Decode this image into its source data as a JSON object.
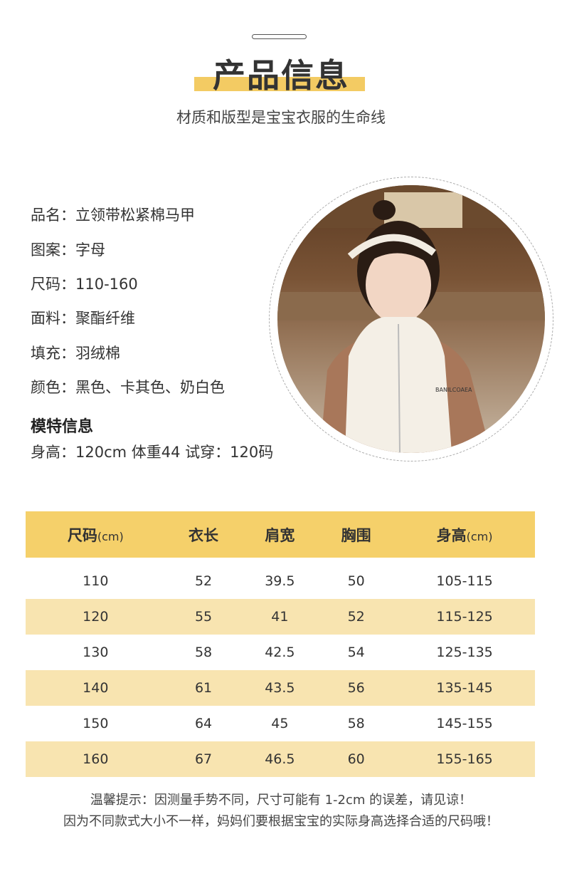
{
  "header": {
    "title": "产品信息",
    "subtitle": "材质和版型是宝宝衣服的生命线"
  },
  "product_info": [
    "品名：立领带松紧棉马甲",
    "图案：字母",
    "尺码：110-160",
    "面料：聚酯纤维",
    "填充：羽绒棉",
    "颜色：黑色、卡其色、奶白色"
  ],
  "model": {
    "title": "模特信息",
    "details": "身高：120cm 体重44  试穿：120码"
  },
  "photo": {
    "vest_text": "BANILCOAEA"
  },
  "size_table": {
    "headers": [
      {
        "label": "尺码",
        "unit": "(cm)"
      },
      {
        "label": "衣长",
        "unit": ""
      },
      {
        "label": "肩宽",
        "unit": ""
      },
      {
        "label": "胸围",
        "unit": ""
      },
      {
        "label": "身高",
        "unit": "(cm)"
      }
    ],
    "rows": [
      [
        "110",
        "52",
        "39.5",
        "50",
        "105-115"
      ],
      [
        "120",
        "55",
        "41",
        "52",
        "115-125"
      ],
      [
        "130",
        "58",
        "42.5",
        "54",
        "125-135"
      ],
      [
        "140",
        "61",
        "43.5",
        "56",
        "135-145"
      ],
      [
        "150",
        "64",
        "45",
        "58",
        "145-155"
      ],
      [
        "160",
        "67",
        "46.5",
        "60",
        "155-165"
      ]
    ]
  },
  "notes": [
    "温馨提示：因测量手势不同，尺寸可能有 1-2cm 的误差，请见谅！",
    "因为不同款式大小不一样，妈妈们要根据宝宝的实际身高选择合适的尺码哦！"
  ],
  "colors": {
    "accent": "#f3cb63",
    "row_alt": "#f8e4b0",
    "header_bg": "#f5d06a"
  }
}
